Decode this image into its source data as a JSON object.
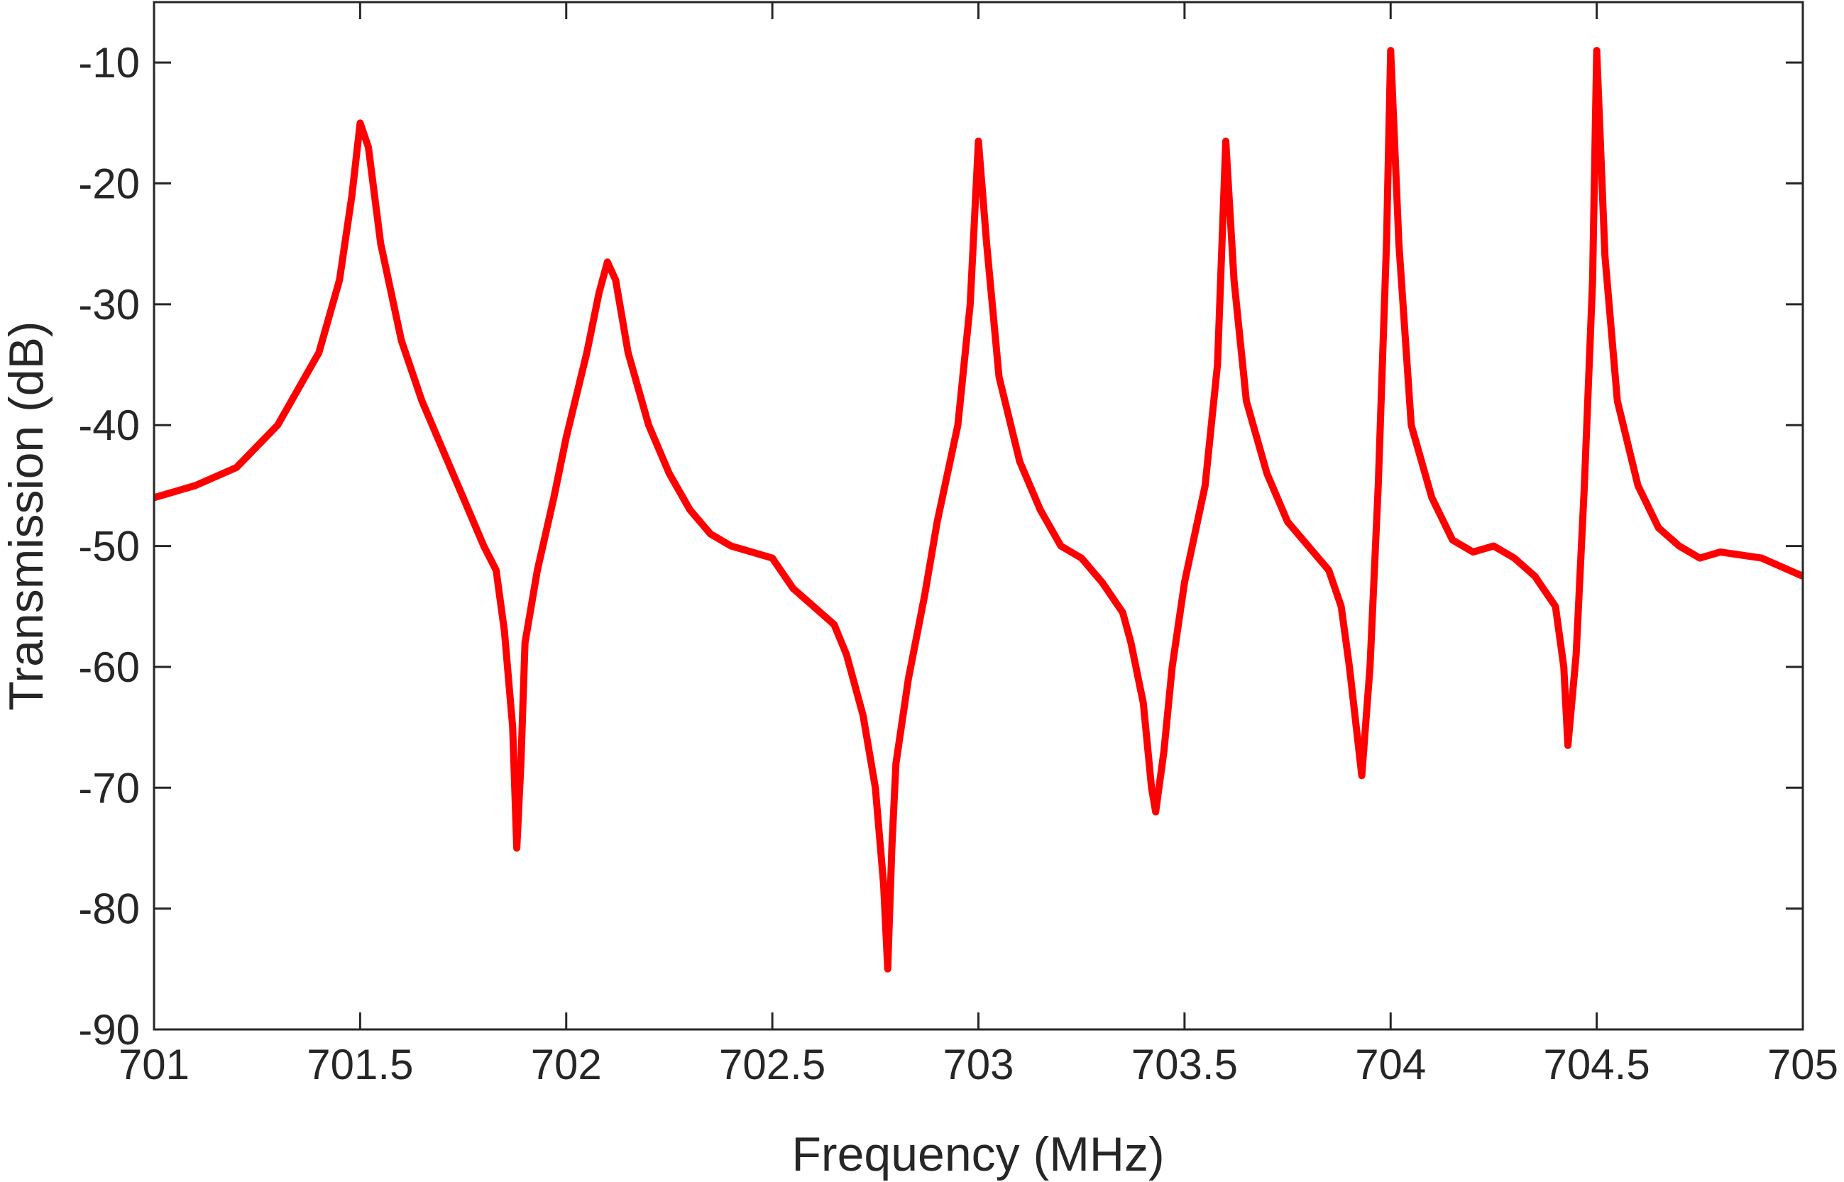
{
  "chart_data": {
    "type": "line",
    "xlabel": "Frequency (MHz)",
    "ylabel": "Transmission (dB)",
    "color": "#ff0000",
    "x": [
      701.0,
      701.1,
      701.2,
      701.3,
      701.4,
      701.45,
      701.48,
      701.5,
      701.52,
      701.55,
      701.6,
      701.65,
      701.7,
      701.75,
      701.8,
      701.83,
      701.85,
      701.87,
      701.88,
      701.89,
      701.9,
      701.93,
      701.97,
      702.0,
      702.05,
      702.08,
      702.1,
      702.12,
      702.15,
      702.2,
      702.25,
      702.3,
      702.35,
      702.4,
      702.45,
      702.5,
      702.55,
      702.6,
      702.65,
      702.68,
      702.72,
      702.75,
      702.77,
      702.78,
      702.79,
      702.8,
      702.83,
      702.87,
      702.9,
      702.95,
      702.98,
      703.0,
      703.02,
      703.05,
      703.1,
      703.15,
      703.2,
      703.25,
      703.3,
      703.35,
      703.37,
      703.4,
      703.42,
      703.43,
      703.45,
      703.47,
      703.5,
      703.55,
      703.58,
      703.6,
      703.62,
      703.65,
      703.7,
      703.75,
      703.8,
      703.85,
      703.88,
      703.9,
      703.93,
      703.95,
      703.97,
      703.99,
      704.0,
      704.02,
      704.05,
      704.1,
      704.15,
      704.2,
      704.25,
      704.3,
      704.35,
      704.4,
      704.42,
      704.43,
      704.45,
      704.47,
      704.49,
      704.5,
      704.52,
      704.55,
      704.6,
      704.65,
      704.7,
      704.75,
      704.8,
      704.9,
      705.0
    ],
    "values": [
      -46,
      -45,
      -43.5,
      -40,
      -34,
      -28,
      -21,
      -15,
      -17,
      -25,
      -33,
      -38,
      -42,
      -46,
      -50,
      -52,
      -57,
      -65,
      -75,
      -68,
      -58,
      -52,
      -46,
      -41,
      -34,
      -29,
      -26.5,
      -28,
      -34,
      -40,
      -44,
      -47,
      -49,
      -50,
      -50.5,
      -51,
      -53.5,
      -55,
      -56.5,
      -59,
      -64,
      -70,
      -78,
      -85,
      -75,
      -68,
      -61,
      -54,
      -48,
      -40,
      -30,
      -16.5,
      -25,
      -36,
      -43,
      -47,
      -50,
      -51,
      -53,
      -55.5,
      -58,
      -63,
      -70,
      -72,
      -67,
      -60,
      -53,
      -45,
      -35,
      -16.5,
      -28,
      -38,
      -44,
      -48,
      -50,
      -52,
      -55,
      -60,
      -69,
      -60,
      -45,
      -25,
      -9,
      -25,
      -40,
      -46,
      -49.5,
      -50.5,
      -50,
      -51,
      -52.5,
      -55,
      -60,
      -66.5,
      -59,
      -45,
      -28,
      -9,
      -26,
      -38,
      -45,
      -48.5,
      -50,
      -51,
      -50.5,
      -51,
      -52.5
    ],
    "xlim": [
      701,
      705
    ],
    "xticks": [
      701,
      701.5,
      702,
      702.5,
      703,
      703.5,
      704,
      704.5,
      705
    ],
    "ylim": [
      -90,
      -5
    ],
    "yticks": [
      -90,
      -80,
      -70,
      -60,
      -50,
      -40,
      -30,
      -20,
      -10
    ]
  }
}
